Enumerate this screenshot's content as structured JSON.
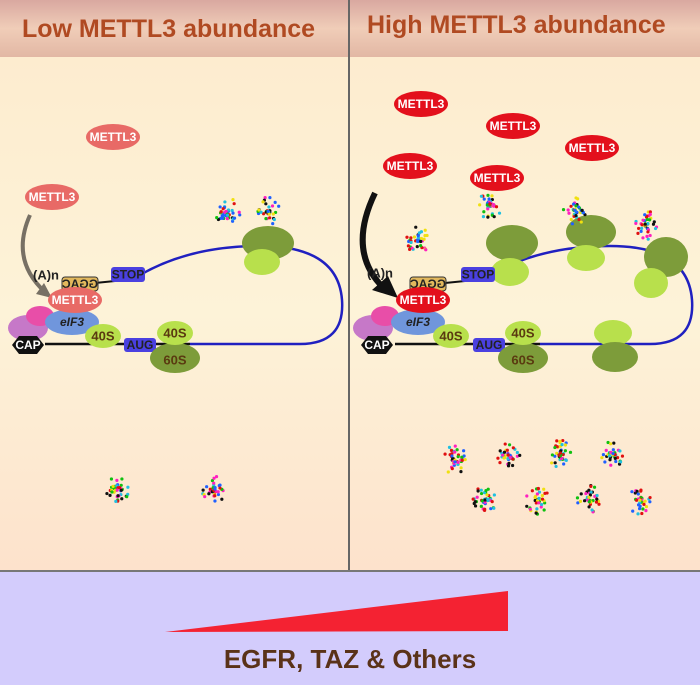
{
  "headers": {
    "left": "Low METTL3 abundance",
    "right": "High METTL3 abundance"
  },
  "labels": {
    "mettl3": "METTL3",
    "cap": "CAP",
    "eif3": "eIF3",
    "s40": "40S",
    "s60": "60S",
    "aug": "AUG",
    "stop": "STOP",
    "ggac": "GGAC",
    "polya": "(A)n"
  },
  "bottom": {
    "targets": "EGFR, TAZ & Others"
  },
  "colors": {
    "header_bg": "#e8c2b0",
    "panel_bg": "#fde9d4",
    "bottom_bg": "#d3ccfc",
    "mettl3_low": "#e86a66",
    "mettl3_high": "#e3101c",
    "mrna": "#2020c0",
    "ribosome_small": "#b8e04c",
    "ribosome_large": "#7d9c3a",
    "wedge": "#f42232"
  },
  "free_proteins": {
    "low": 2,
    "high": 8
  }
}
